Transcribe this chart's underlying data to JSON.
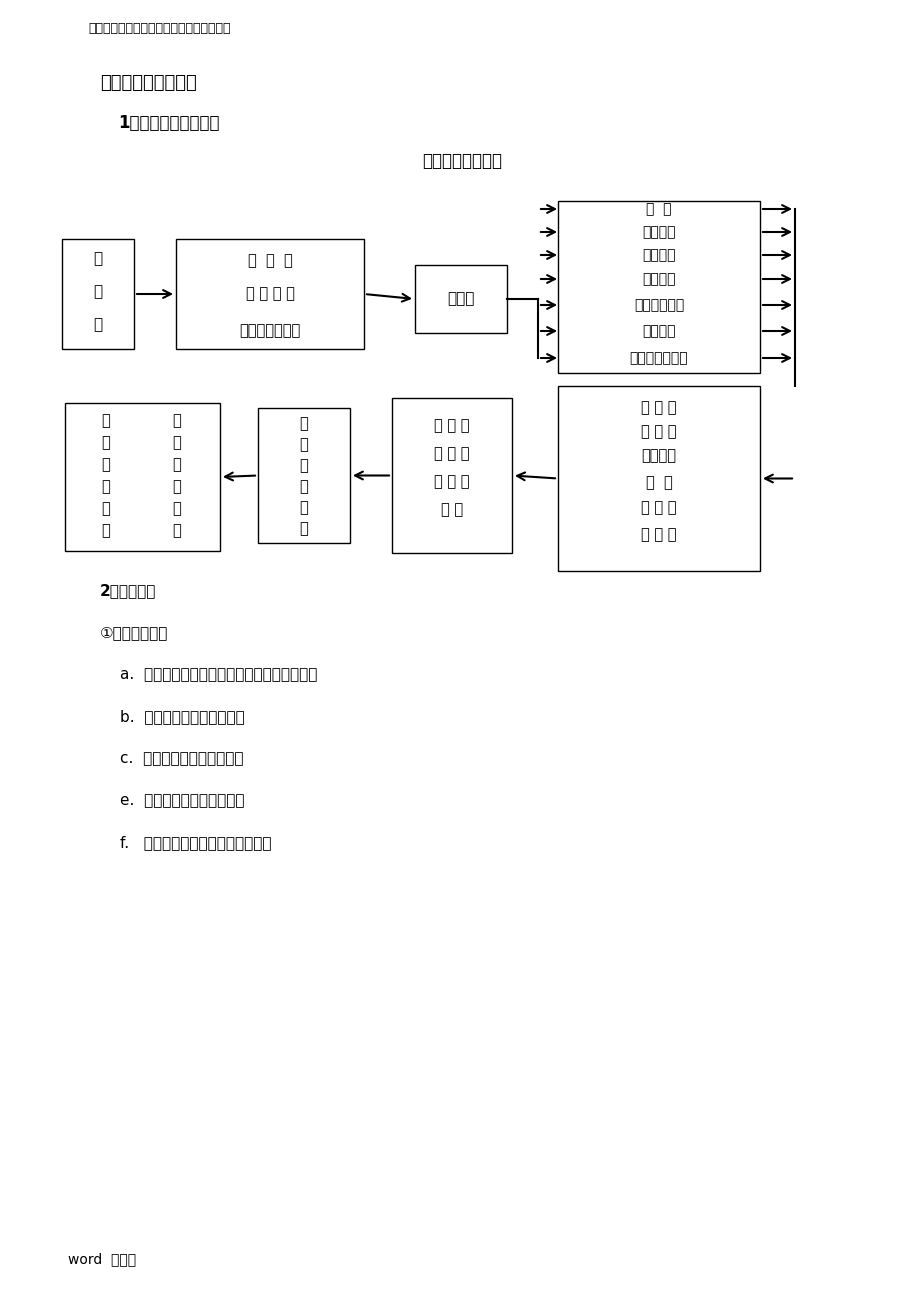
{
  "bg_color": "#ffffff",
  "header_text": "资料收集于网络，如有侵权请联系网站删除",
  "section_title": "三、验收程序及细则",
  "subsection_title": "1．基本验收程序框图",
  "diagram_title": "基本验收程序框图",
  "footer_text": "word  可编辑",
  "list_items": [
    {
      "text": "2．验收细则",
      "indent": 100,
      "bold": true,
      "fontsize": 11
    },
    {
      "text": "①风管系统部分",
      "indent": 100,
      "bold": false,
      "fontsize": 11
    },
    {
      "text": "a.  风管系统总体布局是否按照设计图纸施工；",
      "indent": 120,
      "bold": false,
      "fontsize": 11
    },
    {
      "text": "b.  风管接口是否符合要求；",
      "indent": 120,
      "bold": false,
      "fontsize": 11
    },
    {
      "text": "c.  风管材料是否符合要求；",
      "indent": 120,
      "bold": false,
      "fontsize": 11
    },
    {
      "text": "e.  风管包装是否符合要求；",
      "indent": 120,
      "bold": false,
      "fontsize": 11
    },
    {
      "text": "f.   风管系统所用全部材料的数量；",
      "indent": 120,
      "bold": false,
      "fontsize": 11
    }
  ],
  "right_items": [
    "地  坪",
    "暖通验收",
    "结构验收",
    "电器验收",
    "工艺设备验收",
    "实物清点",
    "洁净区测试情况"
  ],
  "bottom_right_items": [
    "生 产 部",
    "项 目 办",
    "施工单位",
    "车  间",
    "安 保 部",
    "质 管 部"
  ],
  "box_A_chars": [
    "项",
    "目",
    "办"
  ],
  "box_B_lines": [
    "竣  工  图",
    "竣 工 报 告",
    "合同及补充协议"
  ],
  "box_C_text": "生产部",
  "box_E_chars": [
    "验",
    "收",
    "领",
    "导",
    "小",
    "组"
  ],
  "box_F_left_chars": [
    "竣",
    "工",
    "验",
    "收",
    "报",
    "告"
  ],
  "box_F_right_chars": [
    "验",
    "收",
    "评",
    "定",
    "意",
    "见"
  ],
  "box_D_lines": [
    "初 步 验",
    "收 意 见",
    "及 情 况",
    "说 明"
  ]
}
